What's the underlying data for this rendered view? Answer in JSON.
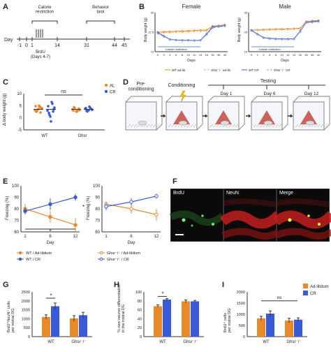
{
  "panels": {
    "A": {
      "letter": "A",
      "day_label": "Day",
      "days": [
        "-1",
        "0",
        "1",
        "14",
        "31",
        "44",
        "45"
      ],
      "bracket_calorie": "Calorie\nrestriction",
      "bracket_behavior": "Behavior\ntask",
      "brdu_label": "BrdU",
      "brdu_days": "(Days 4-7)"
    },
    "B": {
      "letter": "B",
      "female_title": "Female",
      "male_title": "Male",
      "ylabel": "Body weight (g)",
      "xlabel": "Days",
      "cr_label": "Calorie restriction",
      "legend": [
        "WT ad-lib",
        "Ghsr⁻/⁻ ad-lib",
        "WT CR",
        "Ghsr⁻/⁻ CR"
      ],
      "colors": {
        "wt_adlib": "#e8892a",
        "ghsr_adlib": "#f0b36e",
        "wt_cr": "#3a5bd9",
        "ghsr_cr": "#7f9bea"
      }
    },
    "C": {
      "letter": "C",
      "ns": "ns",
      "ylabel": "Δ body weight (g)",
      "categories": [
        "WT",
        "Ghsr"
      ],
      "legend": [
        "AL",
        "CR"
      ],
      "colors": {
        "al": "#e8892a",
        "cr": "#3a5bd9"
      }
    },
    "D": {
      "letter": "D",
      "stages": [
        "Pre-\nconditioning",
        "Conditioning",
        "Testing"
      ],
      "test_days": [
        "Day 1",
        "Day 6",
        "Day 12"
      ]
    },
    "E": {
      "letter": "E",
      "ylabel": "Freezing (%)",
      "xlabel": "Day",
      "xticks": [
        "1",
        "6",
        "12"
      ],
      "yticks": [
        "60",
        "70",
        "80",
        "90",
        "100"
      ],
      "star": "*",
      "legend_left": [
        "WT / Ad-libitum",
        "WT / CR"
      ],
      "legend_right": [
        "Ghsr⁻/⁻ / Ad-libitum",
        "Ghsr⁻/⁻ / CR"
      ]
    },
    "F": {
      "letter": "F",
      "labels": [
        "BrdU",
        "NeuN",
        "Merge"
      ]
    },
    "G": {
      "letter": "G",
      "ylabel": "BrdU⁺NeuN⁺ cells\nper rostral DG",
      "star": "*",
      "categories": [
        "WT",
        "Ghsr⁻/⁻"
      ]
    },
    "H": {
      "letter": "H",
      "ylabel": "% new neuron differentiation\nin the rostral DG",
      "star": "*",
      "categories": [
        "WT",
        "Ghsr⁻/⁻"
      ]
    },
    "I": {
      "letter": "I",
      "ylabel": "BrdU⁺ cells\nper rostral DG",
      "ns": "ns",
      "categories": [
        "WT",
        "Ghsr⁻/⁻"
      ],
      "legend": [
        "Ad-libitum",
        "CR"
      ]
    }
  },
  "chart_data": [
    {
      "id": "B-female",
      "type": "line",
      "title": "Female",
      "xlabel": "Days",
      "ylabel": "Body weight (g)",
      "xticks": [
        0,
        2,
        4,
        6,
        8,
        10,
        12,
        14,
        16,
        30,
        36,
        42
      ],
      "ylim": [
        15,
        30
      ],
      "series": [
        {
          "name": "WT ad-lib",
          "values": [
            22.5,
            22.6,
            22.7,
            22.8,
            22.9,
            23.0,
            23.1,
            23.2,
            23.3,
            24.8,
            25.0,
            25.3
          ]
        },
        {
          "name": "Ghsr⁻/⁻ ad-lib",
          "values": [
            22.2,
            22.3,
            22.4,
            22.5,
            22.6,
            22.7,
            22.8,
            22.9,
            23.0,
            24.5,
            24.8,
            25.0
          ]
        },
        {
          "name": "WT CR",
          "values": [
            22.3,
            21.0,
            19.7,
            19.5,
            19.4,
            19.4,
            19.3,
            19.4,
            21.8,
            24.5,
            24.7,
            25.0
          ]
        },
        {
          "name": "Ghsr⁻/⁻ CR",
          "values": [
            22.0,
            20.8,
            19.6,
            19.4,
            19.3,
            19.3,
            19.2,
            19.3,
            21.5,
            24.2,
            24.5,
            24.8
          ]
        }
      ]
    },
    {
      "id": "B-male",
      "type": "line",
      "title": "Male",
      "xlabel": "Days",
      "ylabel": "Body weight (g)",
      "xticks": [
        0,
        2,
        4,
        6,
        8,
        10,
        12,
        14,
        16,
        30,
        36,
        42
      ],
      "ylim": [
        15,
        35
      ],
      "series": [
        {
          "name": "WT ad-lib",
          "values": [
            26.0,
            26.1,
            26.3,
            26.4,
            26.5,
            26.6,
            26.7,
            26.8,
            27.0,
            30.5,
            30.8,
            31.0
          ]
        },
        {
          "name": "Ghsr⁻/⁻ ad-lib",
          "values": [
            25.8,
            25.9,
            26.0,
            26.1,
            26.2,
            26.3,
            26.4,
            26.5,
            26.7,
            30.2,
            30.5,
            30.8
          ]
        },
        {
          "name": "WT CR",
          "values": [
            26.0,
            24.0,
            22.2,
            21.8,
            21.6,
            21.5,
            21.5,
            21.6,
            25.5,
            30.0,
            30.3,
            30.6
          ]
        },
        {
          "name": "Ghsr⁻/⁻ CR",
          "values": [
            25.7,
            23.8,
            22.0,
            21.6,
            21.4,
            21.3,
            21.3,
            21.4,
            25.2,
            29.8,
            30.0,
            30.3
          ]
        }
      ]
    },
    {
      "id": "C",
      "type": "scatter",
      "ylabel": "Δ body weight (g)",
      "categories": [
        "WT",
        "Ghsr"
      ],
      "ylim": [
        -5,
        10
      ],
      "yticks": [
        -5,
        0,
        5,
        10
      ],
      "series": [
        {
          "name": "AL",
          "group": "WT",
          "values": [
            3.2,
            4.5,
            2.8,
            3.9,
            5.0,
            2.5,
            4.1,
            3.6,
            4.8,
            2.2,
            3.4
          ]
        },
        {
          "name": "CR",
          "group": "WT",
          "values": [
            3.0,
            5.8,
            1.2,
            4.2,
            6.5,
            2.0,
            3.5,
            -1.5,
            4.8,
            2.6,
            0.5
          ]
        },
        {
          "name": "AL",
          "group": "Ghsr",
          "values": [
            3.5,
            2.9,
            4.0,
            3.2,
            2.5,
            4.4,
            3.8,
            2.7,
            3.0
          ]
        },
        {
          "name": "CR",
          "group": "Ghsr",
          "values": [
            3.8,
            4.2,
            2.6,
            3.3,
            4.6,
            2.9,
            3.6,
            3.1,
            4.0
          ]
        }
      ]
    },
    {
      "id": "E-left",
      "type": "line",
      "xlabel": "Day",
      "ylabel": "Freezing (%)",
      "categories": [
        "1",
        "6",
        "12"
      ],
      "ylim": [
        60,
        100
      ],
      "series": [
        {
          "name": "WT / Ad-libitum",
          "values": [
            80,
            73,
            66
          ],
          "err": [
            4,
            5,
            6
          ]
        },
        {
          "name": "WT / CR",
          "values": [
            78,
            84,
            90
          ],
          "err": [
            3,
            5,
            3
          ]
        }
      ]
    },
    {
      "id": "E-right",
      "type": "line",
      "xlabel": "Day",
      "ylabel": "Freezing (%)",
      "categories": [
        "1",
        "6",
        "12"
      ],
      "ylim": [
        60,
        100
      ],
      "series": [
        {
          "name": "Ghsr⁻/⁻ / Ad-libitum",
          "values": [
            84,
            80,
            75
          ],
          "err": [
            3,
            4,
            5
          ]
        },
        {
          "name": "Ghsr⁻/⁻ / CR",
          "values": [
            82,
            86,
            91
          ],
          "err": [
            3,
            3,
            2
          ]
        }
      ]
    },
    {
      "id": "G",
      "type": "bar",
      "categories": [
        "WT",
        "Ghsr⁻/⁻"
      ],
      "ylim": [
        0,
        2500
      ],
      "yticks": [
        0,
        500,
        1000,
        1500,
        2000,
        2500
      ],
      "series": [
        {
          "name": "Ad-libitum",
          "values": [
            1100,
            1020
          ],
          "err": [
            120,
            150
          ]
        },
        {
          "name": "CR",
          "values": [
            1700,
            1200
          ],
          "err": [
            180,
            160
          ]
        }
      ]
    },
    {
      "id": "H",
      "type": "bar",
      "categories": [
        "WT",
        "Ghsr⁻/⁻"
      ],
      "ylim": [
        0,
        100
      ],
      "yticks": [
        0,
        20,
        40,
        60,
        80,
        100
      ],
      "series": [
        {
          "name": "Ad-libitum",
          "values": [
            68,
            79
          ],
          "err": [
            3,
            3
          ]
        },
        {
          "name": "CR",
          "values": [
            83,
            79
          ],
          "err": [
            2,
            2
          ]
        }
      ]
    },
    {
      "id": "I",
      "type": "bar",
      "categories": [
        "WT",
        "Ghsr⁻/⁻"
      ],
      "ylim": [
        0,
        2000
      ],
      "yticks": [
        0,
        500,
        1000,
        1500,
        2000
      ],
      "series": [
        {
          "name": "Ad-libitum",
          "values": [
            820,
            720
          ],
          "err": [
            90,
            100
          ]
        },
        {
          "name": "CR",
          "values": [
            1030,
            760
          ],
          "err": [
            120,
            80
          ]
        }
      ]
    }
  ]
}
